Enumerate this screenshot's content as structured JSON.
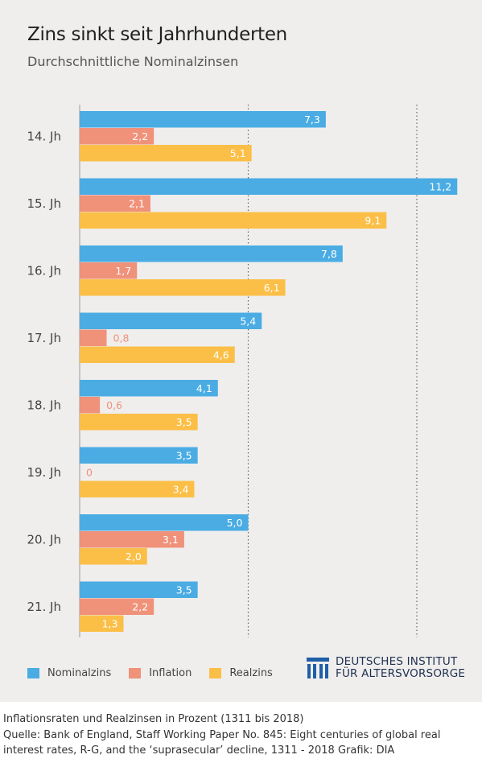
{
  "title": "Zins sinkt seit Jahrhunderten",
  "subtitle": "Durchschnittliche Nominalzinsen",
  "colors": {
    "nominal": "#4aace3",
    "inflation": "#f0917a",
    "real": "#fbbf47",
    "inflation_label": "#f0917a"
  },
  "chart_data": {
    "type": "bar",
    "orientation": "horizontal",
    "categories": [
      "14. Jh",
      "15. Jh",
      "16. Jh",
      "17. Jh",
      "18. Jh",
      "19. Jh",
      "20. Jh",
      "21. Jh"
    ],
    "series": [
      {
        "name": "Nominalzins",
        "values": [
          7.3,
          11.2,
          7.8,
          5.4,
          4.1,
          3.5,
          5.0,
          3.5
        ],
        "labels": [
          "7,3",
          "11,2",
          "7,8",
          "5,4",
          "4,1",
          "3,5",
          "5,0",
          "3,5"
        ]
      },
      {
        "name": "Inflation",
        "values": [
          2.2,
          2.1,
          1.7,
          0.8,
          0.6,
          0,
          3.1,
          2.2
        ],
        "labels": [
          "2,2",
          "2,1",
          "1,7",
          "0,8",
          "0,6",
          "0",
          "3,1",
          "2,2"
        ]
      },
      {
        "name": "Realzins",
        "values": [
          5.1,
          9.1,
          6.1,
          4.6,
          3.5,
          3.4,
          2.0,
          1.3
        ],
        "labels": [
          "5,1",
          "9,1",
          "6,1",
          "4,6",
          "3,5",
          "3,4",
          "2,0",
          "1,3"
        ]
      }
    ],
    "xlim": [
      0,
      11.2
    ],
    "reference_lines": [
      5,
      10
    ],
    "legend_position": "bottom-left"
  },
  "logo": {
    "line1": "DEUTSCHES INSTITUT",
    "line2": "FÜR ALTERSVORSORGE"
  },
  "footer": {
    "line1": "Inflationsraten und Realzinsen in Prozent (1311 bis 2018)",
    "line2": "Quelle: Bank of England, Staff Working Paper No. 845: Eight centuries of global real",
    "line3": "interest rates, R-G, and the ‘suprasecular’ decline, 1311 - 2018  Grafik: DIA"
  }
}
